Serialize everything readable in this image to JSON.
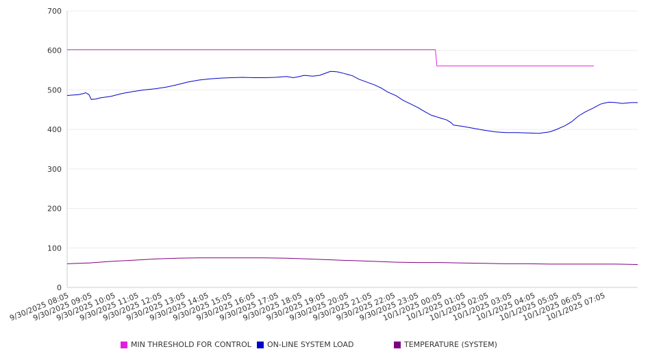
{
  "chart_data": {
    "type": "line",
    "xlabel": "",
    "ylabel": "",
    "ylim": [
      0,
      700
    ],
    "y_ticks": [
      "0",
      "100",
      "200",
      "300",
      "400",
      "500",
      "600",
      "700"
    ],
    "x_tick_labels": [
      "9/30/2025 08:05",
      "9/30/2025 09:05",
      "9/30/2025 10:05",
      "9/30/2025 11:05",
      "9/30/2025 12:05",
      "9/30/2025 13:05",
      "9/30/2025 14:05",
      "9/30/2025 15:05",
      "9/30/2025 16:05",
      "9/30/2025 17:05",
      "9/30/2025 18:05",
      "9/30/2025 19:05",
      "9/30/2025 20:05",
      "9/30/2025 21:05",
      "9/30/2025 22:05",
      "9/30/2025 23:05",
      "10/1/2025 00:05",
      "10/1/2025 01:05",
      "10/1/2025 02:05",
      "10/1/2025 03:05",
      "10/1/2025 04:05",
      "10/1/2025 05:05",
      "10/1/2025 06:05",
      "10/1/2025 07:05"
    ],
    "grid": true,
    "legend_position": "bottom",
    "series": [
      {
        "name": "MIN THRESHOLD FOR CONTROL",
        "color": "#e020e0",
        "points": [
          [
            0,
            602
          ],
          [
            16.78,
            602
          ],
          [
            16.85,
            561
          ],
          [
            24,
            561
          ]
        ]
      },
      {
        "name": "ON-LINE SYSTEM LOAD",
        "color": "#0000cc",
        "points": [
          [
            0,
            486
          ],
          [
            0.25,
            487
          ],
          [
            0.5,
            488
          ],
          [
            0.75,
            491
          ],
          [
            0.85,
            493
          ],
          [
            1.0,
            488
          ],
          [
            1.1,
            476
          ],
          [
            1.3,
            477
          ],
          [
            1.5,
            480
          ],
          [
            2.0,
            484
          ],
          [
            2.5,
            491
          ],
          [
            3.0,
            496
          ],
          [
            3.5,
            500
          ],
          [
            4.0,
            503
          ],
          [
            4.5,
            507
          ],
          [
            5.0,
            513
          ],
          [
            5.5,
            520
          ],
          [
            6.0,
            525
          ],
          [
            6.5,
            528
          ],
          [
            7.0,
            530
          ],
          [
            7.5,
            531
          ],
          [
            8.0,
            532
          ],
          [
            8.5,
            531
          ],
          [
            9.0,
            531
          ],
          [
            9.5,
            532
          ],
          [
            10.0,
            534
          ],
          [
            10.3,
            531
          ],
          [
            10.5,
            533
          ],
          [
            10.8,
            537
          ],
          [
            11.2,
            535
          ],
          [
            11.5,
            537
          ],
          [
            11.8,
            543
          ],
          [
            12.0,
            547
          ],
          [
            12.3,
            546
          ],
          [
            12.6,
            542
          ],
          [
            13.0,
            536
          ],
          [
            13.3,
            527
          ],
          [
            13.6,
            521
          ],
          [
            14.0,
            513
          ],
          [
            14.3,
            505
          ],
          [
            14.6,
            495
          ],
          [
            15.0,
            485
          ],
          [
            15.3,
            474
          ],
          [
            15.6,
            466
          ],
          [
            16.0,
            455
          ],
          [
            16.3,
            445
          ],
          [
            16.6,
            436
          ],
          [
            17.0,
            429
          ],
          [
            17.3,
            424
          ],
          [
            17.5,
            417
          ],
          [
            17.6,
            411
          ],
          [
            18.0,
            408
          ],
          [
            18.5,
            403
          ],
          [
            19.0,
            398
          ],
          [
            19.5,
            394
          ],
          [
            20.0,
            392
          ],
          [
            20.5,
            392
          ],
          [
            21.0,
            391
          ],
          [
            21.5,
            390
          ],
          [
            22.0,
            394
          ],
          [
            22.3,
            400
          ],
          [
            22.7,
            410
          ],
          [
            23.0,
            420
          ],
          [
            23.3,
            434
          ],
          [
            23.6,
            444
          ],
          [
            24.0,
            455
          ],
          [
            24.3,
            464
          ],
          [
            24.5,
            467
          ],
          [
            24.7,
            469
          ],
          [
            25.0,
            468
          ],
          [
            25.3,
            466
          ],
          [
            25.5,
            467
          ],
          [
            25.7,
            468
          ],
          [
            26.0,
            468
          ]
        ]
      },
      {
        "name": "TEMPERATURE (SYSTEM)",
        "color": "#800080",
        "points": [
          [
            0,
            60
          ],
          [
            1,
            62
          ],
          [
            2,
            66
          ],
          [
            3,
            69
          ],
          [
            4,
            72
          ],
          [
            5,
            74
          ],
          [
            6,
            75
          ],
          [
            7,
            75
          ],
          [
            8,
            75
          ],
          [
            9,
            75
          ],
          [
            10,
            74
          ],
          [
            11,
            72
          ],
          [
            12,
            70
          ],
          [
            13,
            68
          ],
          [
            14,
            66
          ],
          [
            15,
            64
          ],
          [
            16,
            63
          ],
          [
            17,
            63
          ],
          [
            18,
            62
          ],
          [
            19,
            61
          ],
          [
            20,
            60
          ],
          [
            21,
            60
          ],
          [
            22,
            59
          ],
          [
            23,
            59
          ],
          [
            24,
            59
          ],
          [
            25,
            59
          ],
          [
            26,
            58
          ]
        ]
      }
    ]
  }
}
